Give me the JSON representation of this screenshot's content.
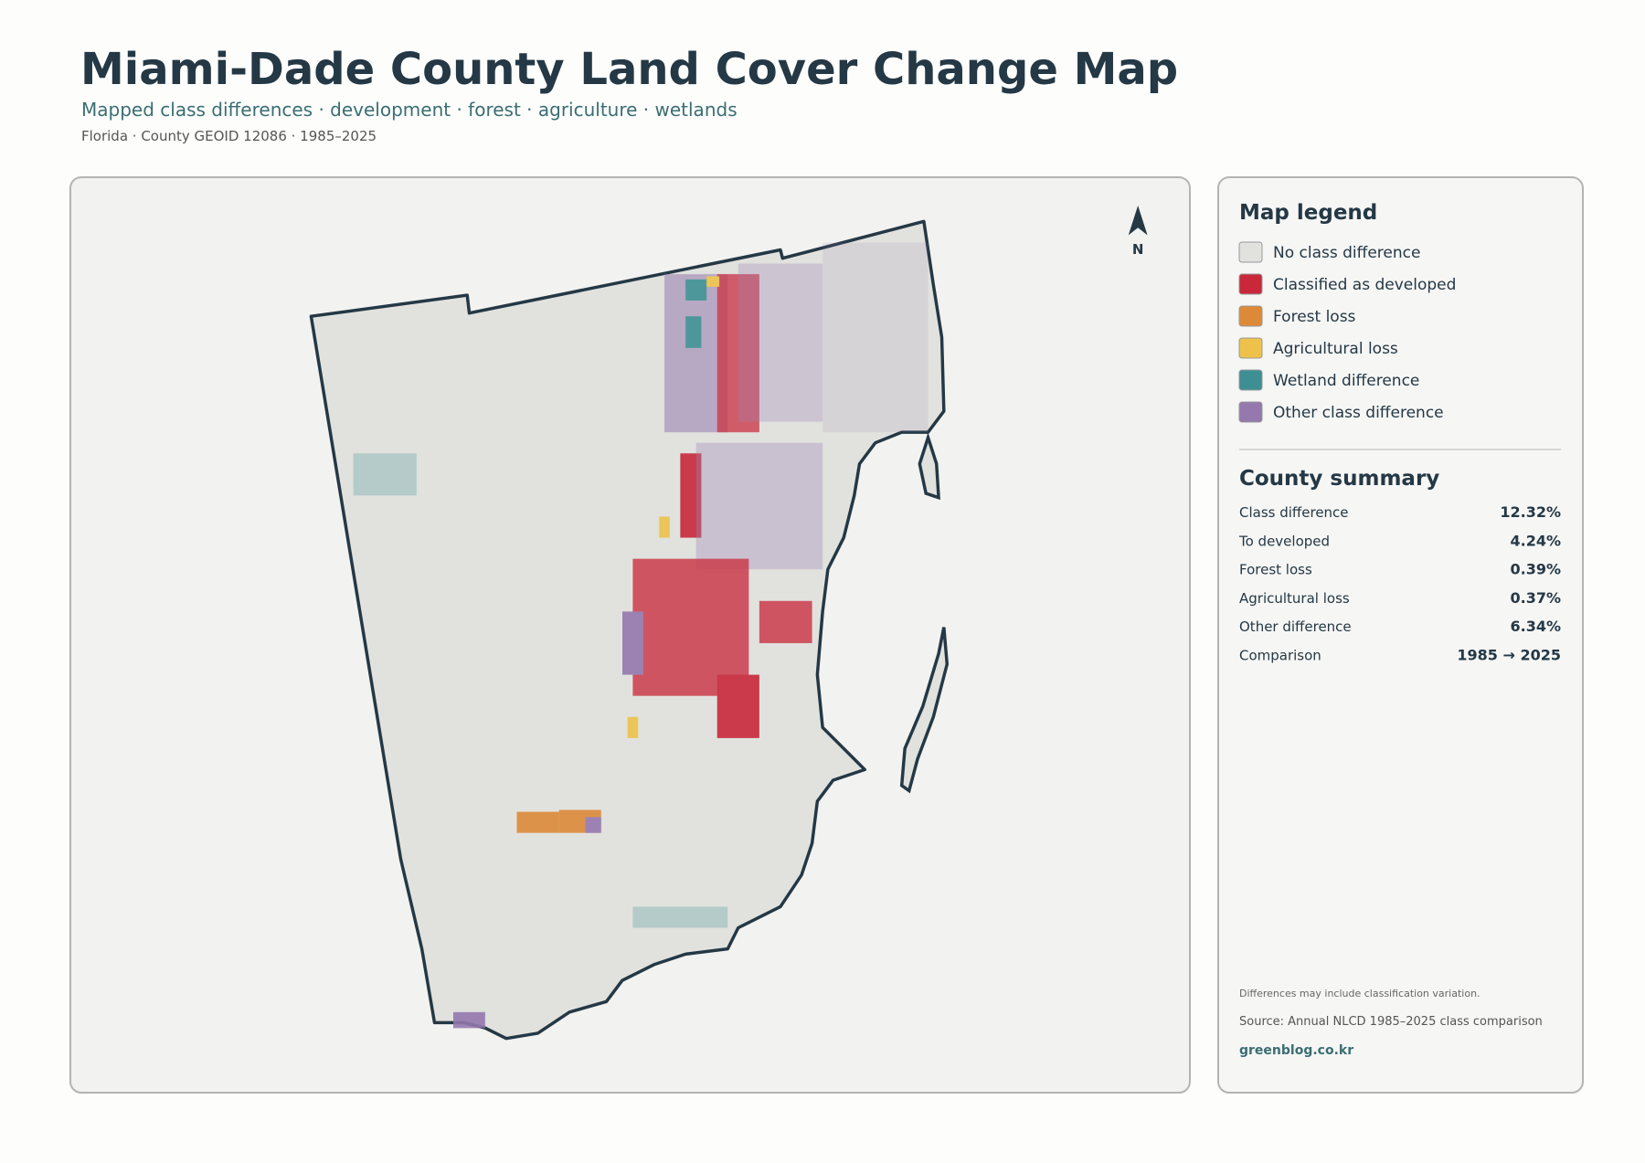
{
  "header": {
    "title": "Miami-Dade County Land Cover Change Map",
    "subtitle": "Mapped class differences · development · forest · agriculture · wetlands",
    "meta": "Florida · County GEOID 12086 · 1985–2025"
  },
  "map": {
    "north_label": "N"
  },
  "legend": {
    "title": "Map legend",
    "items": [
      {
        "label": "No class difference",
        "color": "#e1e2de"
      },
      {
        "label": "Classified as developed",
        "color": "#c8283a"
      },
      {
        "label": "Forest loss",
        "color": "#dd8a38"
      },
      {
        "label": "Agricultural loss",
        "color": "#eec24a"
      },
      {
        "label": "Wetland difference",
        "color": "#3d8f93"
      },
      {
        "label": "Other class difference",
        "color": "#9478ae"
      }
    ]
  },
  "summary": {
    "title": "County summary",
    "rows": [
      {
        "label": "Class difference",
        "value": "12.32%"
      },
      {
        "label": "To developed",
        "value": "4.24%"
      },
      {
        "label": "Forest loss",
        "value": "0.39%"
      },
      {
        "label": "Agricultural loss",
        "value": "0.37%"
      },
      {
        "label": "Other difference",
        "value": "6.34%"
      },
      {
        "label": "Comparison",
        "value": "1985 → 2025"
      }
    ]
  },
  "footer": {
    "note": "Differences may include classification variation.",
    "source": "Source: Annual NLCD 1985–2025 class comparison",
    "site": "greenblog.co.kr"
  }
}
